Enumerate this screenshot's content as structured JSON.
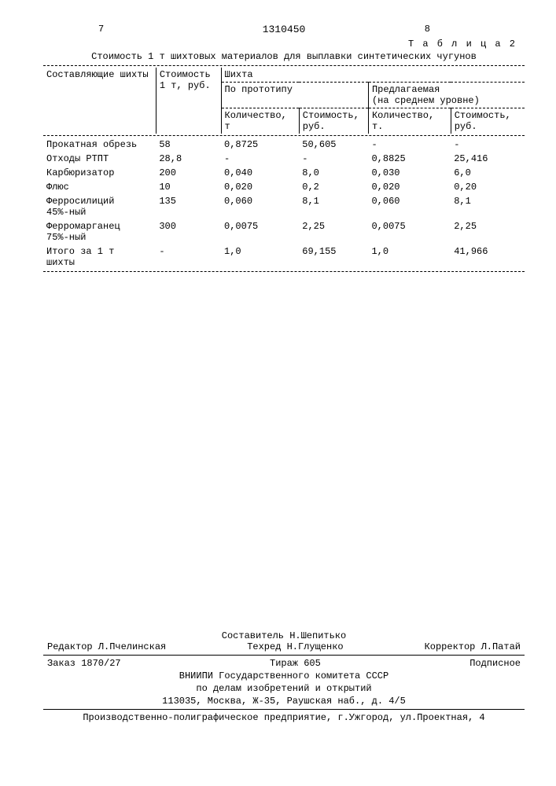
{
  "header": {
    "left_page": "7",
    "right_page": "8",
    "doc_number": "1310450",
    "table_label": "Т а б л и ц а 2",
    "caption": "Стоимость 1 т шихтовых материалов для выплавки синтетических чугунов"
  },
  "columns": {
    "components": "Составляющие шихты",
    "cost_1t": "Стоимость\n1 т, руб.",
    "charge": "Шихта",
    "proto": "По прототипу",
    "proposed_line1": "Предлагаемая",
    "proposed_line2": "(на среднем уровне)",
    "qty": "Количество,\nт",
    "qty2": "Количество,\nт.",
    "cost": "Стоимость,\nруб."
  },
  "rows": [
    {
      "name": "Прокатная обрезь",
      "p": "58",
      "q1": "0,8725",
      "c1": "50,605",
      "q2": "-",
      "c2": "-"
    },
    {
      "name": "Отходы РТПТ",
      "p": "28,8",
      "q1": "-",
      "c1": "-",
      "q2": "0,8825",
      "c2": "25,416"
    },
    {
      "name": "Карбюризатор",
      "p": "200",
      "q1": "0,040",
      "c1": "8,0",
      "q2": "0,030",
      "c2": "6,0"
    },
    {
      "name": "Флюс",
      "p": "10",
      "q1": "0,020",
      "c1": "0,2",
      "q2": "0,020",
      "c2": "0,20"
    },
    {
      "name": "Ферросилиций\n45%-ный",
      "p": "135",
      "q1": "0,060",
      "c1": "8,1",
      "q2": "0,060",
      "c2": "8,1"
    },
    {
      "name": "Ферромарганец\n75%-ный",
      "p": "300",
      "q1": "0,0075",
      "c1": "2,25",
      "q2": "0,0075",
      "c2": "2,25"
    },
    {
      "name": "Итого за 1 т\nшихты",
      "p": "-",
      "q1": "1,0",
      "c1": "69,155",
      "q2": "1,0",
      "c2": "41,966"
    }
  ],
  "footer": {
    "compiler": "Составитель Н.Шепитько",
    "editor": "Редактор Л.Пчелинская",
    "tech_ed": "Техред Н.Глущенко",
    "corrector": "Корректор Л.Патай",
    "order": "Заказ 1870/27",
    "tirazh": "Тираж 605",
    "subscr": "Подписное",
    "org1": "ВНИИПИ Государственного комитета СССР",
    "org2": "по делам изобретений и открытий",
    "addr": "113035, Москва, Ж-35, Раушская наб., д. 4/5",
    "print": "Производственно-полиграфическое предприятие, г.Ужгород, ул.Проектная, 4"
  }
}
